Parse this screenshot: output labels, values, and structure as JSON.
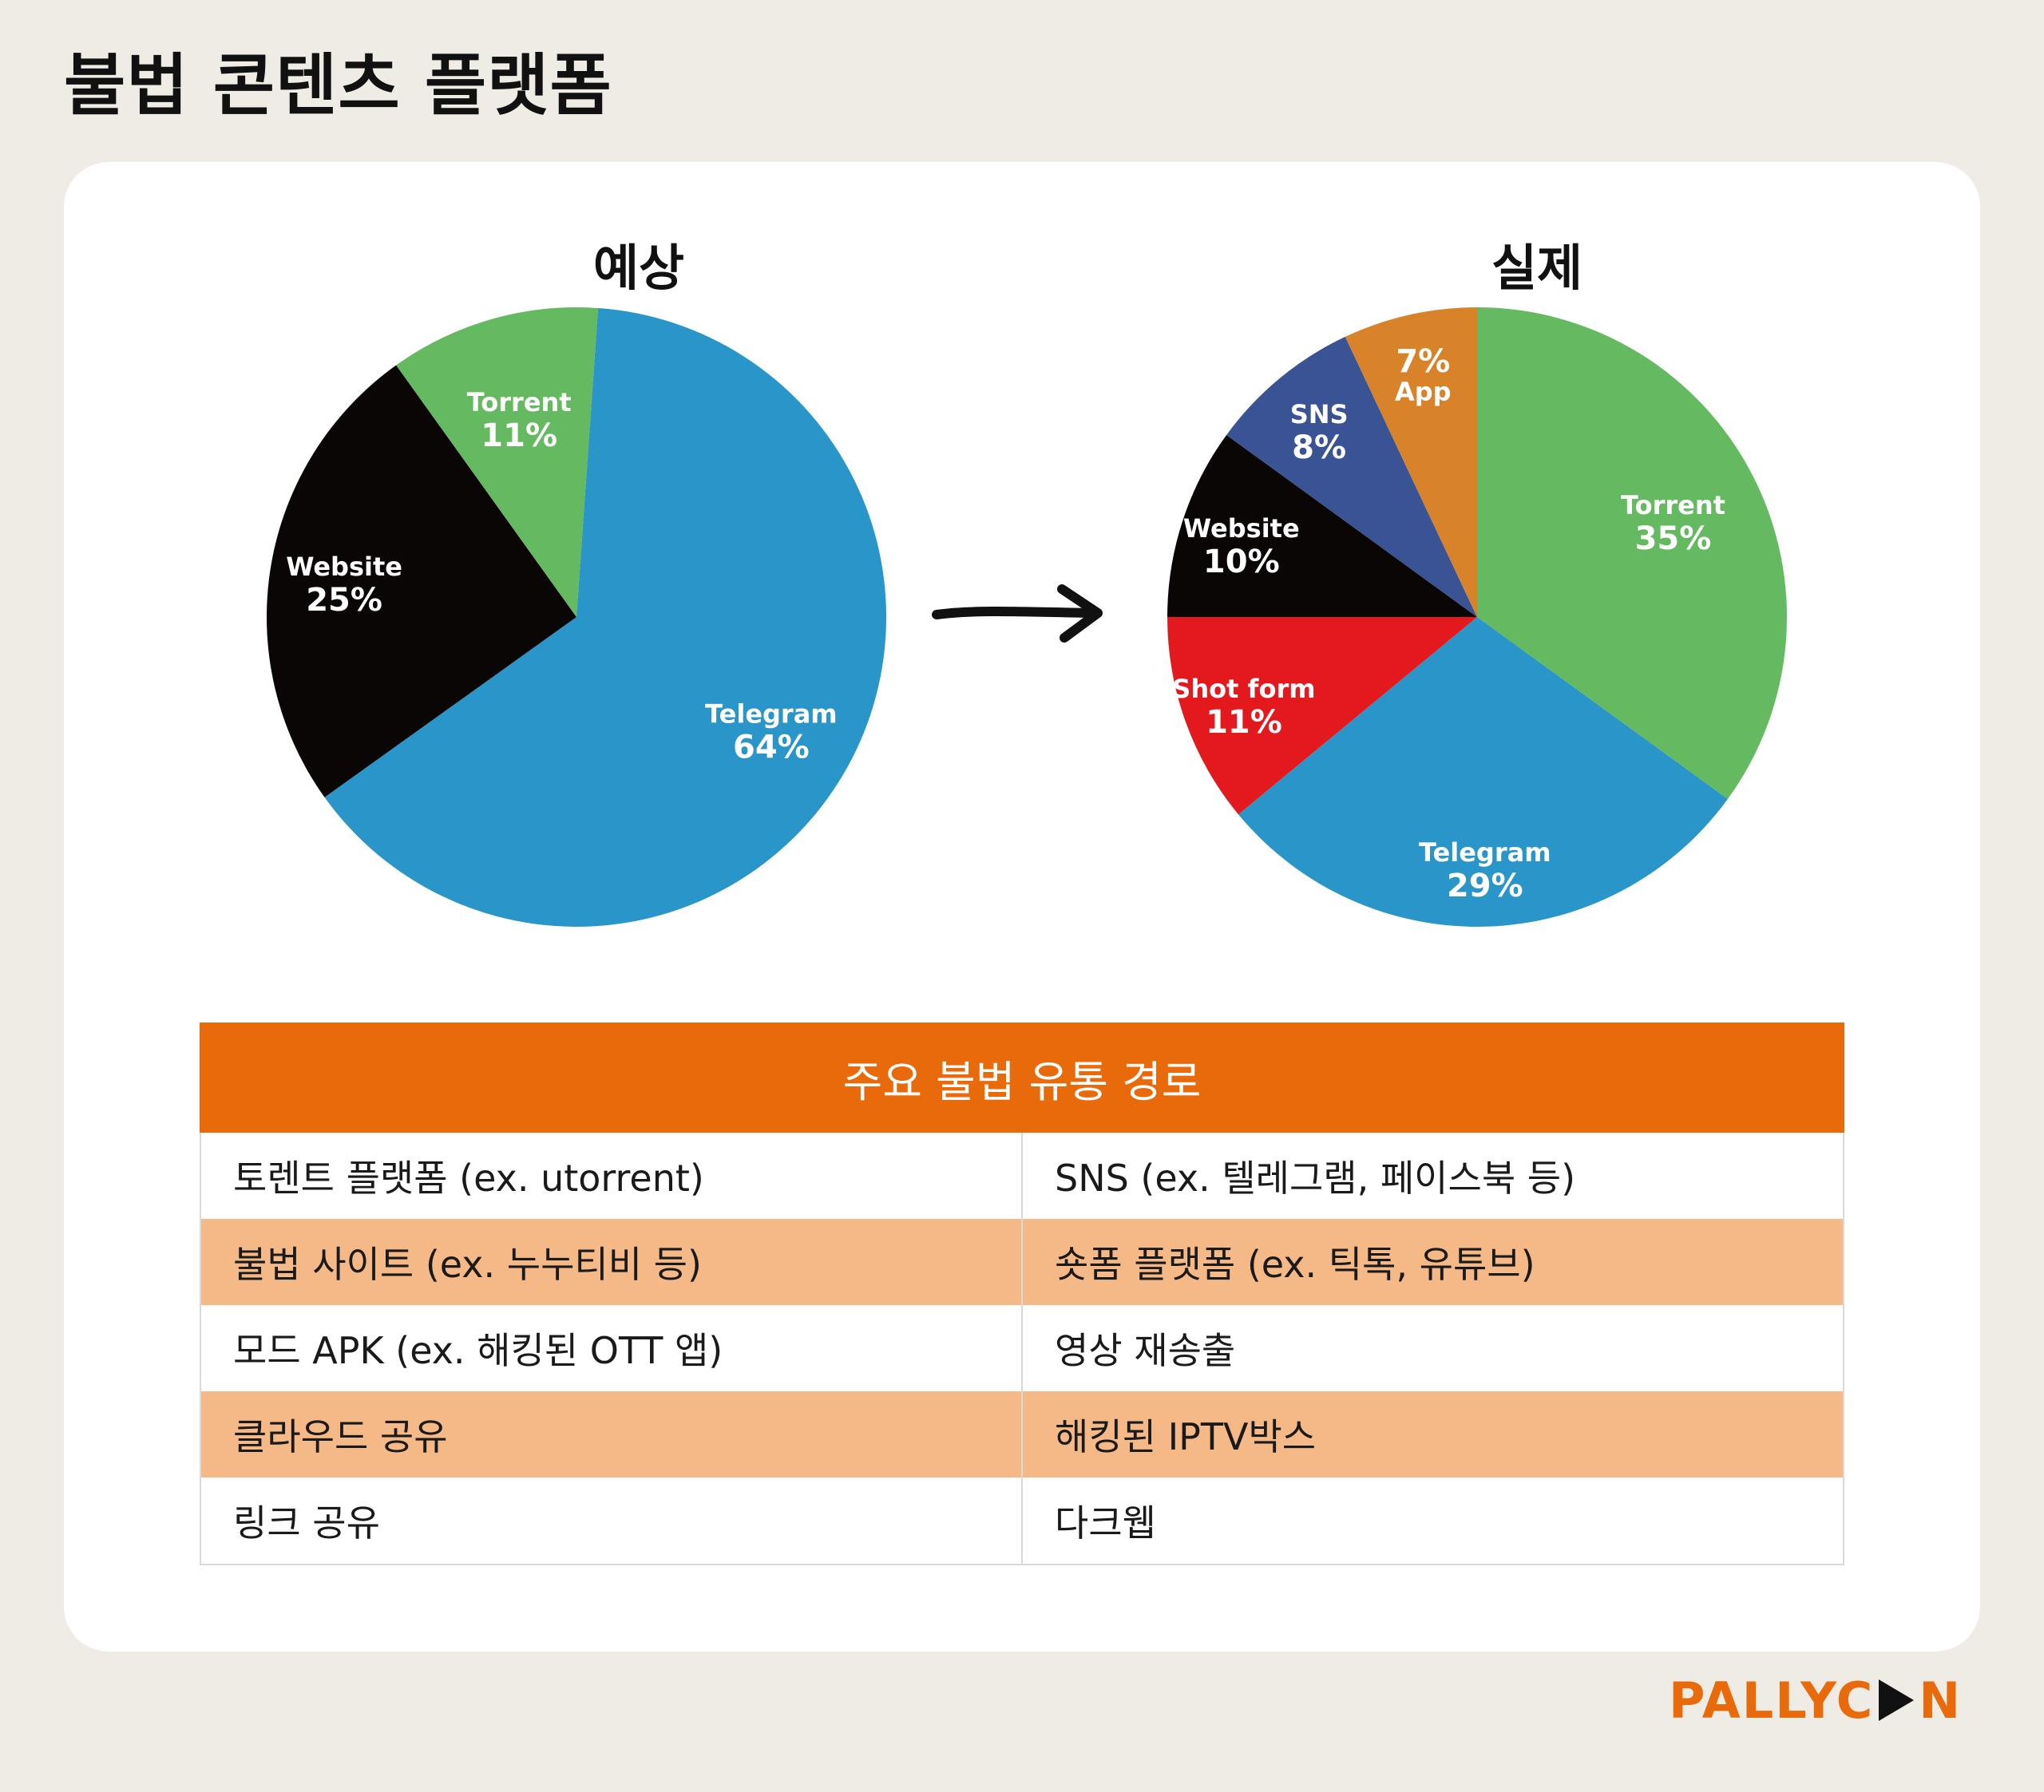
{
  "page": {
    "title": "불법 콘텐츠 플랫폼"
  },
  "colors": {
    "telegram": "#2a95c8",
    "website": "#0a0606",
    "torrent": "#65b960",
    "shortform": "#e4191d",
    "sns": "#3a5394",
    "app": "#d8832a",
    "accent": "#e96a0a",
    "row_highlight": "#f5b987"
  },
  "chart_data": [
    {
      "type": "pie",
      "title": "예상",
      "slices": [
        {
          "label": "Telegram",
          "value": 64,
          "value_text": "64%",
          "color": "#2a95c8"
        },
        {
          "label": "Website",
          "value": 25,
          "value_text": "25%",
          "color": "#0a0606"
        },
        {
          "label": "Torrent",
          "value": 11,
          "value_text": "11%",
          "color": "#65b960"
        }
      ]
    },
    {
      "type": "pie",
      "title": "실제",
      "slices": [
        {
          "label": "Torrent",
          "value": 35,
          "value_text": "35%",
          "color": "#65b960"
        },
        {
          "label": "Telegram",
          "value": 29,
          "value_text": "29%",
          "color": "#2a95c8"
        },
        {
          "label": "Shot form",
          "value": 11,
          "value_text": "11%",
          "color": "#e4191d"
        },
        {
          "label": "Website",
          "value": 10,
          "value_text": "10%",
          "color": "#0a0606"
        },
        {
          "label": "SNS",
          "value": 8,
          "value_text": "8%",
          "color": "#3a5394"
        },
        {
          "label": "App",
          "value": 7,
          "value_text": "7%",
          "color": "#d8832a",
          "value_first": true
        }
      ]
    }
  ],
  "table": {
    "header": "주요 불법 유통 경로",
    "rows": [
      [
        "토렌트 플랫폼 (ex. utorrent)",
        "SNS (ex. 텔레그램, 페이스북 등)"
      ],
      [
        "불법 사이트 (ex. 누누티비 등)",
        "숏폼 플랫폼 (ex. 틱톡, 유튜브)"
      ],
      [
        "모드 APK (ex. 해킹된 OTT 앱)",
        "영상 재송출"
      ],
      [
        "클라우드 공유",
        "해킹된 IPTV박스"
      ],
      [
        "링크 공유",
        "다크웹"
      ]
    ]
  },
  "brand": {
    "logo_left": "PALLYC",
    "logo_right": "N"
  }
}
